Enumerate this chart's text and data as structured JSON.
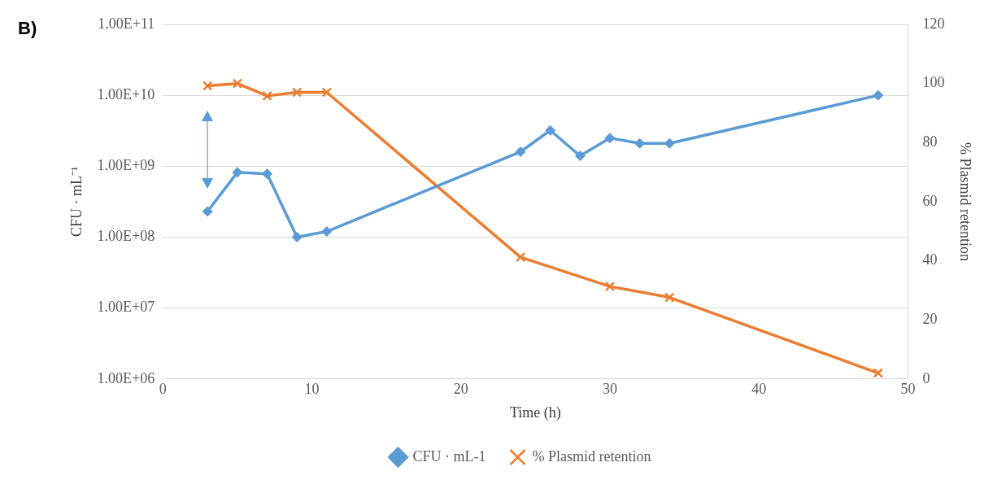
{
  "chart_data": {
    "type": "line",
    "xlabel": "Time (h)",
    "ylabel": "CFU · mL⁻¹",
    "y2label": "% Plasmid retention",
    "annotations": [
      "B)"
    ],
    "log": "y",
    "grid": "y",
    "legend": "bottom",
    "xlim": [
      0,
      50
    ],
    "xticks": [
      0,
      10,
      20,
      30,
      40,
      50
    ],
    "ylim": [
      1000000,
      100000000000
    ],
    "yticks": [
      {
        "value": 1000000,
        "label": "1.00E+06"
      },
      {
        "value": 10000000,
        "label": "1.00E+07"
      },
      {
        "value": 100000000,
        "label": "1.00E+08"
      },
      {
        "value": 1000000000,
        "label": "1.00E+09"
      },
      {
        "value": 10000000000,
        "label": "1.00E+10"
      },
      {
        "value": 100000000000,
        "label": "1.00E+11"
      }
    ],
    "y2lim": [
      0,
      120
    ],
    "y2ticks": [
      0,
      20,
      40,
      60,
      80,
      100,
      120
    ],
    "series": [
      {
        "name": "CFU · mL-1",
        "color": "#5b9bd5",
        "marker": "diamond",
        "x": [
          3,
          5,
          7,
          9,
          11,
          24,
          26,
          28,
          30,
          32,
          34,
          48
        ],
        "values": [
          230000000,
          820000000,
          780000000,
          100000000,
          120000000,
          1600000000,
          3200000000,
          1400000000,
          2500000000,
          2100000000,
          2100000000,
          10000000000
        ]
      },
      {
        "name": "% Plasmid retention",
        "color": "#ed7d31",
        "marker": "cross",
        "axis": "y2",
        "x": [
          3,
          5,
          7,
          9,
          11,
          24,
          30,
          34,
          48
        ],
        "values": [
          99.2,
          100,
          95.8,
          97,
          97,
          41.2,
          31.3,
          27.6,
          2
        ]
      }
    ]
  }
}
